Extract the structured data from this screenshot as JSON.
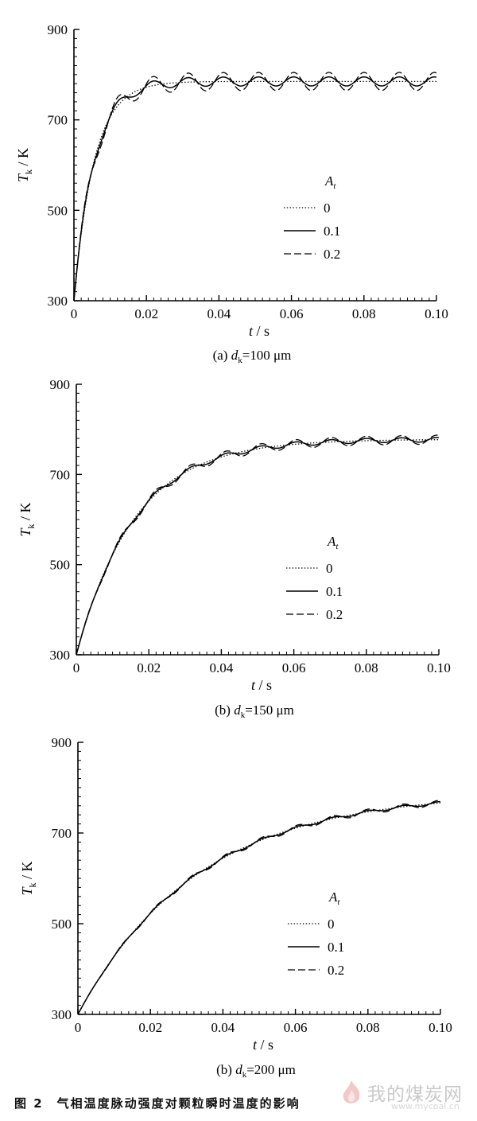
{
  "caption": "图 2　气相温度脉动强度对颗粒瞬时温度的影响",
  "watermark": {
    "text": "我的煤炭网",
    "url": "www.mycoal.cn"
  },
  "chart_data": [
    {
      "type": "line",
      "panel_label": "(a) d",
      "panel_sub": "k",
      "panel_value": "=100 μm",
      "xlabel": "t / s",
      "ylabel": "T",
      "ylabel_sub": "k",
      "ylabel_unit": " / K",
      "xlim": [
        0,
        0.1
      ],
      "ylim": [
        300,
        900
      ],
      "xticks": [
        "0",
        "0.02",
        "0.04",
        "0.06",
        "0.08",
        "0.10"
      ],
      "yticks": [
        "300",
        "500",
        "700",
        "900"
      ],
      "legend_title": "A",
      "legend_title_sub": "t",
      "legend_position": "right-middle",
      "model": {
        "T0": 300,
        "Tinf": 785,
        "tau": 0.0055,
        "period": 0.0097,
        "amplitude_per_A": 100,
        "phase": 0.0
      },
      "series": [
        {
          "name": "0",
          "A": 0,
          "style": "dotted"
        },
        {
          "name": "0.1",
          "A": 0.1,
          "style": "solid"
        },
        {
          "name": "0.2",
          "A": 0.2,
          "style": "dashed"
        }
      ]
    },
    {
      "type": "line",
      "panel_label": "(b) d",
      "panel_sub": "k",
      "panel_value": "=150 μm",
      "xlabel": "t / s",
      "ylabel": "T",
      "ylabel_sub": "k",
      "ylabel_unit": " / K",
      "xlim": [
        0,
        0.1
      ],
      "ylim": [
        300,
        900
      ],
      "xticks": [
        "0",
        "0.02",
        "0.04",
        "0.06",
        "0.08",
        "0.10"
      ],
      "yticks": [
        "300",
        "500",
        "700",
        "900"
      ],
      "legend_title": "A",
      "legend_title_sub": "t",
      "legend_position": "right-middle",
      "model": {
        "T0": 300,
        "Tinf": 778,
        "tau": 0.016,
        "period": 0.0097,
        "amplitude_per_A": 50,
        "phase": 0.0
      },
      "series": [
        {
          "name": "0",
          "A": 0,
          "style": "dotted"
        },
        {
          "name": "0.1",
          "A": 0.1,
          "style": "solid"
        },
        {
          "name": "0.2",
          "A": 0.2,
          "style": "dashed"
        }
      ]
    },
    {
      "type": "line",
      "panel_label": "(b) d",
      "panel_sub": "k",
      "panel_value": "=200 μm",
      "xlabel": "t / s",
      "ylabel": "T",
      "ylabel_sub": "k",
      "ylabel_unit": " / K",
      "xlim": [
        0,
        0.1
      ],
      "ylim": [
        300,
        900
      ],
      "xticks": [
        "0",
        "0.02",
        "0.04",
        "0.06",
        "0.08",
        "0.10"
      ],
      "yticks": [
        "300",
        "500",
        "700",
        "900"
      ],
      "legend_title": "A",
      "legend_title_sub": "t",
      "legend_position": "right-middle",
      "model": {
        "T0": 300,
        "Tinf": 790,
        "tau": 0.033,
        "period": 0.0097,
        "amplitude_per_A": 30,
        "phase": 0.0
      },
      "series": [
        {
          "name": "0",
          "A": 0,
          "style": "dotted"
        },
        {
          "name": "0.1",
          "A": 0.1,
          "style": "solid"
        },
        {
          "name": "0.2",
          "A": 0.2,
          "style": "dashed"
        }
      ]
    }
  ]
}
